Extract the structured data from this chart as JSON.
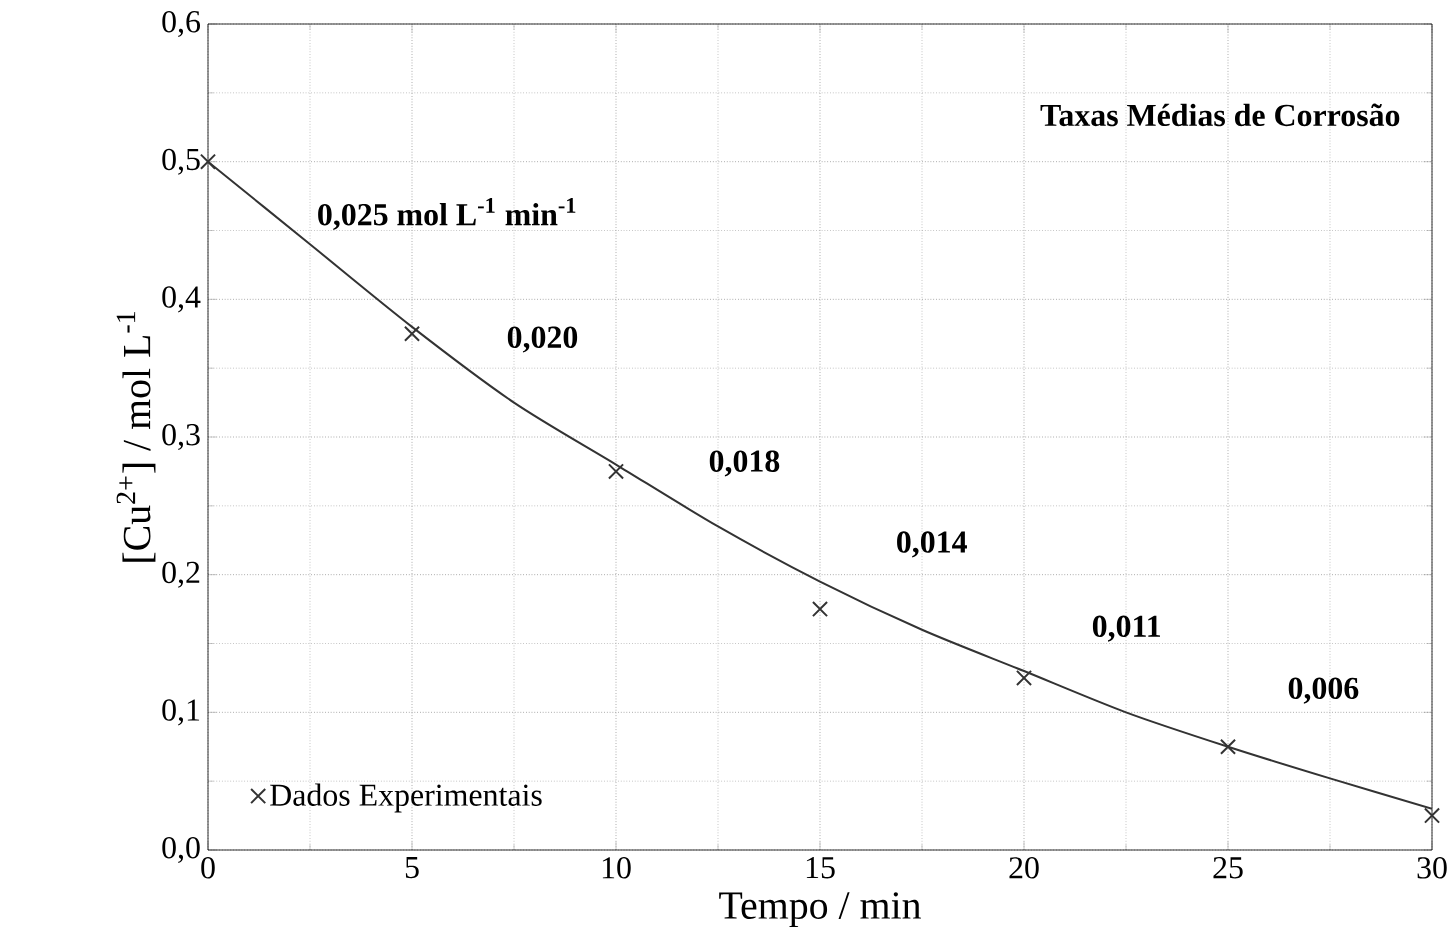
{
  "chart_data": {
    "type": "scatter",
    "title": "Taxas Médias de Corrosão",
    "xlabel": "Tempo / min",
    "ylabel": "[Cu$^{2+}$] / mol L$^{-1}$",
    "xlim": [
      0,
      30
    ],
    "ylim": [
      0,
      0.6
    ],
    "xticks": [
      0,
      5,
      10,
      15,
      20,
      25,
      30
    ],
    "yticks": [
      {
        "value": 0,
        "label": "0,0"
      },
      {
        "value": 0.1,
        "label": "0,1"
      },
      {
        "value": 0.2,
        "label": "0,2"
      },
      {
        "value": 0.3,
        "label": "0,3"
      },
      {
        "value": 0.4,
        "label": "0,4"
      },
      {
        "value": 0.5,
        "label": "0,5"
      },
      {
        "value": 0.6,
        "label": "0,6"
      }
    ],
    "grid": true,
    "legend": "bottom left",
    "series": [
      {
        "name": "Dados Experimentais",
        "marker": "cross",
        "color": "#333333",
        "x": [
          0,
          5,
          10,
          15,
          20,
          25,
          30
        ],
        "values": [
          0.5,
          0.375,
          0.275,
          0.175,
          0.125,
          0.075,
          0.025
        ]
      },
      {
        "type": "line",
        "marker": "none",
        "line_style": "solid",
        "color": "#333333",
        "x": [
          0,
          2.5,
          5,
          7.5,
          10,
          12.5,
          15,
          17.5,
          20,
          22.5,
          25,
          27.5,
          30
        ],
        "values": [
          0.5,
          0.44,
          0.38,
          0.325,
          0.28,
          0.235,
          0.195,
          0.16,
          0.13,
          0.1,
          0.075,
          0.052,
          0.03
        ]
      }
    ],
    "annotations": [
      "0,025 mol L$^{-1}$ min$^{-1}$",
      "0,020",
      "0,018",
      "0,014",
      "0,011",
      "0,006"
    ]
  }
}
